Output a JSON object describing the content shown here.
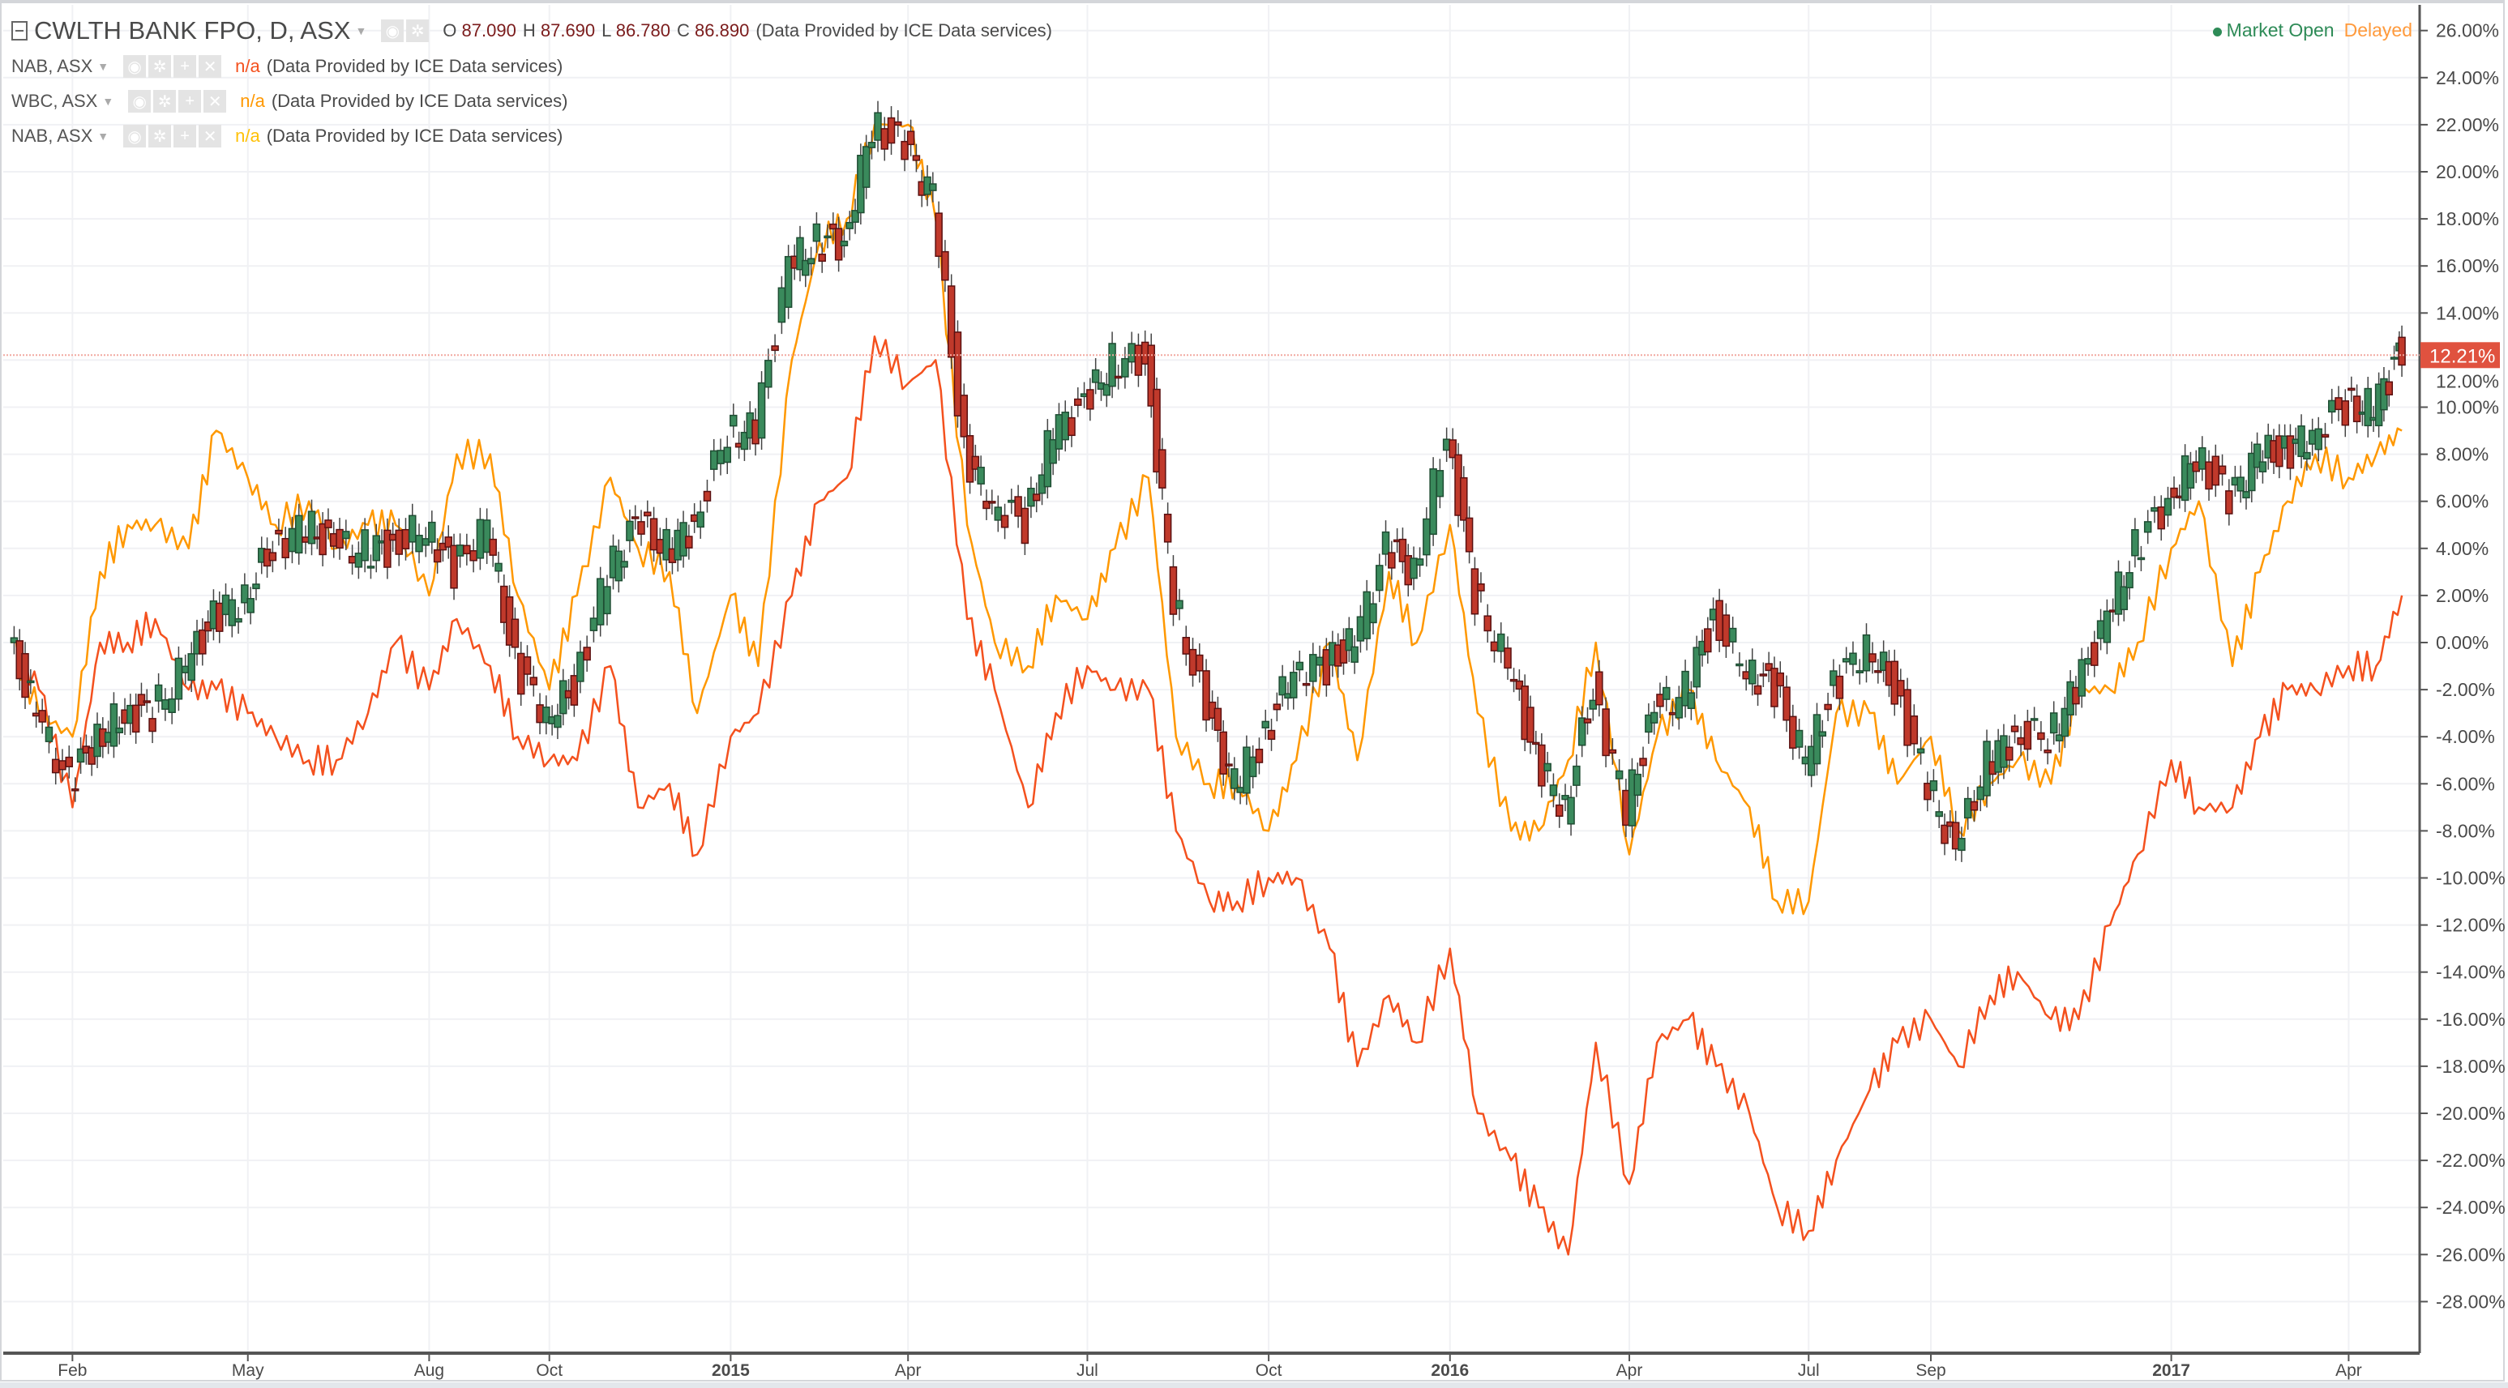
{
  "header": {
    "main_symbol": "CWLTH BANK FPO, D, ASX",
    "ohlc": [
      {
        "label": "O",
        "value": "87.090"
      },
      {
        "label": "H",
        "value": "87.690"
      },
      {
        "label": "L",
        "value": "86.780"
      },
      {
        "label": "C",
        "value": "86.890"
      }
    ],
    "provider": "(Data Provided by ICE Data services)",
    "market_status": "Market Open",
    "delay_status": "Delayed",
    "market_status_color": "#2e8b57",
    "delay_status_color": "#ff9a3c"
  },
  "compare_series": [
    {
      "symbol": "NAB, ASX",
      "value": "n/a",
      "provider": "(Data Provided by ICE Data services)",
      "color": "#f4511e"
    },
    {
      "symbol": "WBC, ASX",
      "value": "n/a",
      "provider": "(Data Provided by ICE Data services)",
      "color": "#ff9800"
    },
    {
      "symbol": "NAB, ASX",
      "value": "n/a",
      "provider": "(Data Provided by ICE Data services)",
      "color": "#ffc107"
    }
  ],
  "chart_data": {
    "type": "line",
    "main_series_type": "candlestick",
    "yaxis_ticks": [
      "26.00%",
      "24.00%",
      "22.00%",
      "20.00%",
      "18.00%",
      "16.00%",
      "14.00%",
      "12.00%",
      "10.00%",
      "8.00%",
      "6.00%",
      "4.00%",
      "2.00%",
      "0.00%",
      "-2.00%",
      "-4.00%",
      "-6.00%",
      "-8.00%",
      "-10.00%",
      "-12.00%",
      "-14.00%",
      "-16.00%",
      "-18.00%",
      "-20.00%",
      "-22.00%",
      "-24.00%",
      "-26.00%",
      "-28.00%"
    ],
    "ylim": [
      -29,
      27
    ],
    "yaxis_position": "right",
    "xaxis_ticks": [
      {
        "label": "Feb",
        "date": "2014-02-01"
      },
      {
        "label": "May",
        "date": "2014-05-01"
      },
      {
        "label": "Aug",
        "date": "2014-08-01"
      },
      {
        "label": "Oct",
        "date": "2014-10-01"
      },
      {
        "label": "2015",
        "date": "2015-01-01"
      },
      {
        "label": "Apr",
        "date": "2015-04-01"
      },
      {
        "label": "Jul",
        "date": "2015-07-01"
      },
      {
        "label": "Oct",
        "date": "2015-10-01"
      },
      {
        "label": "2016",
        "date": "2016-01-01"
      },
      {
        "label": "Apr",
        "date": "2016-04-01"
      },
      {
        "label": "Jul",
        "date": "2016-07-01"
      },
      {
        "label": "Sep",
        "date": "2016-09-01"
      },
      {
        "label": "2017",
        "date": "2017-01-01"
      },
      {
        "label": "Apr",
        "date": "2017-04-01"
      }
    ],
    "grid": true,
    "last_value_label": "12.21%",
    "last_value": 12.21,
    "last_value_color": "#e0523f",
    "up_color": "#3a8a5c",
    "down_color": "#c0392b",
    "x": [
      "2014-01-01",
      "2014-01-15",
      "2014-02-01",
      "2014-02-15",
      "2014-03-01",
      "2014-03-15",
      "2014-04-01",
      "2014-04-15",
      "2014-05-01",
      "2014-05-15",
      "2014-06-01",
      "2014-06-15",
      "2014-07-01",
      "2014-07-15",
      "2014-08-01",
      "2014-08-15",
      "2014-09-01",
      "2014-09-15",
      "2014-10-01",
      "2014-10-15",
      "2014-11-01",
      "2014-11-15",
      "2014-12-01",
      "2014-12-15",
      "2015-01-01",
      "2015-01-15",
      "2015-02-01",
      "2015-02-15",
      "2015-03-01",
      "2015-03-15",
      "2015-04-01",
      "2015-04-15",
      "2015-05-01",
      "2015-05-15",
      "2015-06-01",
      "2015-06-15",
      "2015-07-01",
      "2015-07-15",
      "2015-08-01",
      "2015-08-15",
      "2015-09-01",
      "2015-09-15",
      "2015-10-01",
      "2015-10-15",
      "2015-11-01",
      "2015-11-15",
      "2015-12-01",
      "2015-12-15",
      "2016-01-01",
      "2016-01-15",
      "2016-02-01",
      "2016-02-15",
      "2016-03-01",
      "2016-03-15",
      "2016-04-01",
      "2016-04-15",
      "2016-05-01",
      "2016-05-15",
      "2016-06-01",
      "2016-06-15",
      "2016-07-01",
      "2016-07-15",
      "2016-08-01",
      "2016-08-15",
      "2016-09-01",
      "2016-09-15",
      "2016-10-01",
      "2016-10-15",
      "2016-11-01",
      "2016-11-15",
      "2016-12-01",
      "2016-12-15",
      "2017-01-01",
      "2017-01-15",
      "2017-02-01",
      "2017-02-15",
      "2017-03-01",
      "2017-03-15",
      "2017-04-01",
      "2017-04-15",
      "2017-04-28"
    ],
    "series": [
      {
        "name": "CWLTH BANK FPO, D, ASX",
        "kind": "candlestick",
        "values": [
          0,
          -3,
          -6,
          -4,
          -3,
          -3,
          -1,
          1,
          2,
          4,
          5,
          4,
          4,
          4,
          5,
          3,
          5,
          -1,
          -3,
          -2,
          3,
          5,
          4,
          5,
          9,
          9,
          16,
          17,
          17,
          22,
          21,
          19,
          8,
          6,
          5,
          9,
          10,
          12,
          12,
          2,
          -3,
          -6,
          -4,
          -1,
          -1,
          0,
          4,
          3,
          9,
          2,
          -1,
          -5,
          -7,
          -2,
          -7,
          -3,
          -2,
          1,
          -1,
          -2,
          -5,
          -2,
          0,
          -2,
          -6,
          -9,
          -5,
          -4,
          -4,
          -2,
          1,
          4,
          6,
          8,
          6,
          8,
          8,
          9,
          10,
          10,
          12.21
        ]
      },
      {
        "name": "NAB, ASX",
        "kind": "line",
        "color": "#f4511e",
        "values": [
          0,
          -2,
          -7,
          0,
          0,
          1,
          -2,
          -2,
          -3,
          -4,
          -5,
          -5,
          -3,
          0,
          -2,
          1,
          -1,
          -4,
          -5,
          -5,
          -1,
          -7,
          -6,
          -9,
          -4,
          -3,
          2,
          6,
          7,
          13,
          11,
          12,
          1,
          -2,
          -7,
          -3,
          -1,
          -2,
          -2,
          -8,
          -11,
          -11,
          -10,
          -10,
          -13,
          -18,
          -15,
          -17,
          -13,
          -20,
          -22,
          -24,
          -26,
          -17,
          -23,
          -17,
          -16,
          -18,
          -20,
          -24,
          -25,
          -22,
          -19,
          -17,
          -16,
          -18,
          -15,
          -14,
          -16,
          -16,
          -12,
          -9,
          -5,
          -7,
          -7,
          -4,
          -2,
          -2,
          -1,
          -1,
          2
        ]
      },
      {
        "name": "WBC, ASX",
        "kind": "line",
        "color": "#ff9800",
        "values": [
          0,
          -3,
          -4,
          3,
          5,
          5,
          4,
          9,
          7,
          5,
          6,
          4,
          5,
          5,
          2,
          8,
          8,
          2,
          -2,
          2,
          7,
          4,
          3,
          -3,
          2,
          -1,
          12,
          17,
          18,
          22,
          22,
          18,
          5,
          0,
          -1,
          2,
          1,
          4,
          7,
          -4,
          -6,
          -6,
          -8,
          -5,
          0,
          -5,
          3,
          0,
          5,
          -3,
          -8,
          -8,
          -5,
          0,
          -9,
          -4,
          -2,
          -5,
          -7,
          -11,
          -11,
          -3,
          -3,
          -6,
          -4,
          -8,
          -6,
          -5,
          -6,
          -2,
          -2,
          0,
          4,
          6,
          -1,
          3,
          6,
          8,
          7,
          8,
          9
        ]
      }
    ]
  }
}
